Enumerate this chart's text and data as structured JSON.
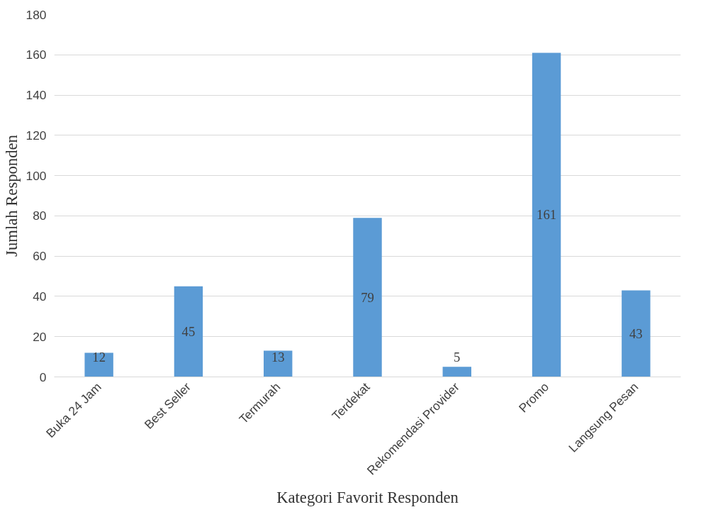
{
  "chart_data": {
    "type": "bar",
    "xlabel": "Kategori Favorit Responden",
    "ylabel": "Jumlah Responden",
    "categories": [
      "Buka 24 Jam",
      "Best Seller",
      "Termurah",
      "Terdekat",
      "Rekomendasi Provider",
      "Promo",
      "Langsung Pesan"
    ],
    "values": [
      12,
      45,
      13,
      79,
      5,
      161,
      43
    ],
    "color": "#5b9bd5",
    "ylim": [
      0,
      180
    ],
    "yticks": [
      0,
      20,
      40,
      60,
      80,
      100,
      120,
      140,
      160,
      180
    ],
    "grid": "y",
    "data_labels": true
  }
}
